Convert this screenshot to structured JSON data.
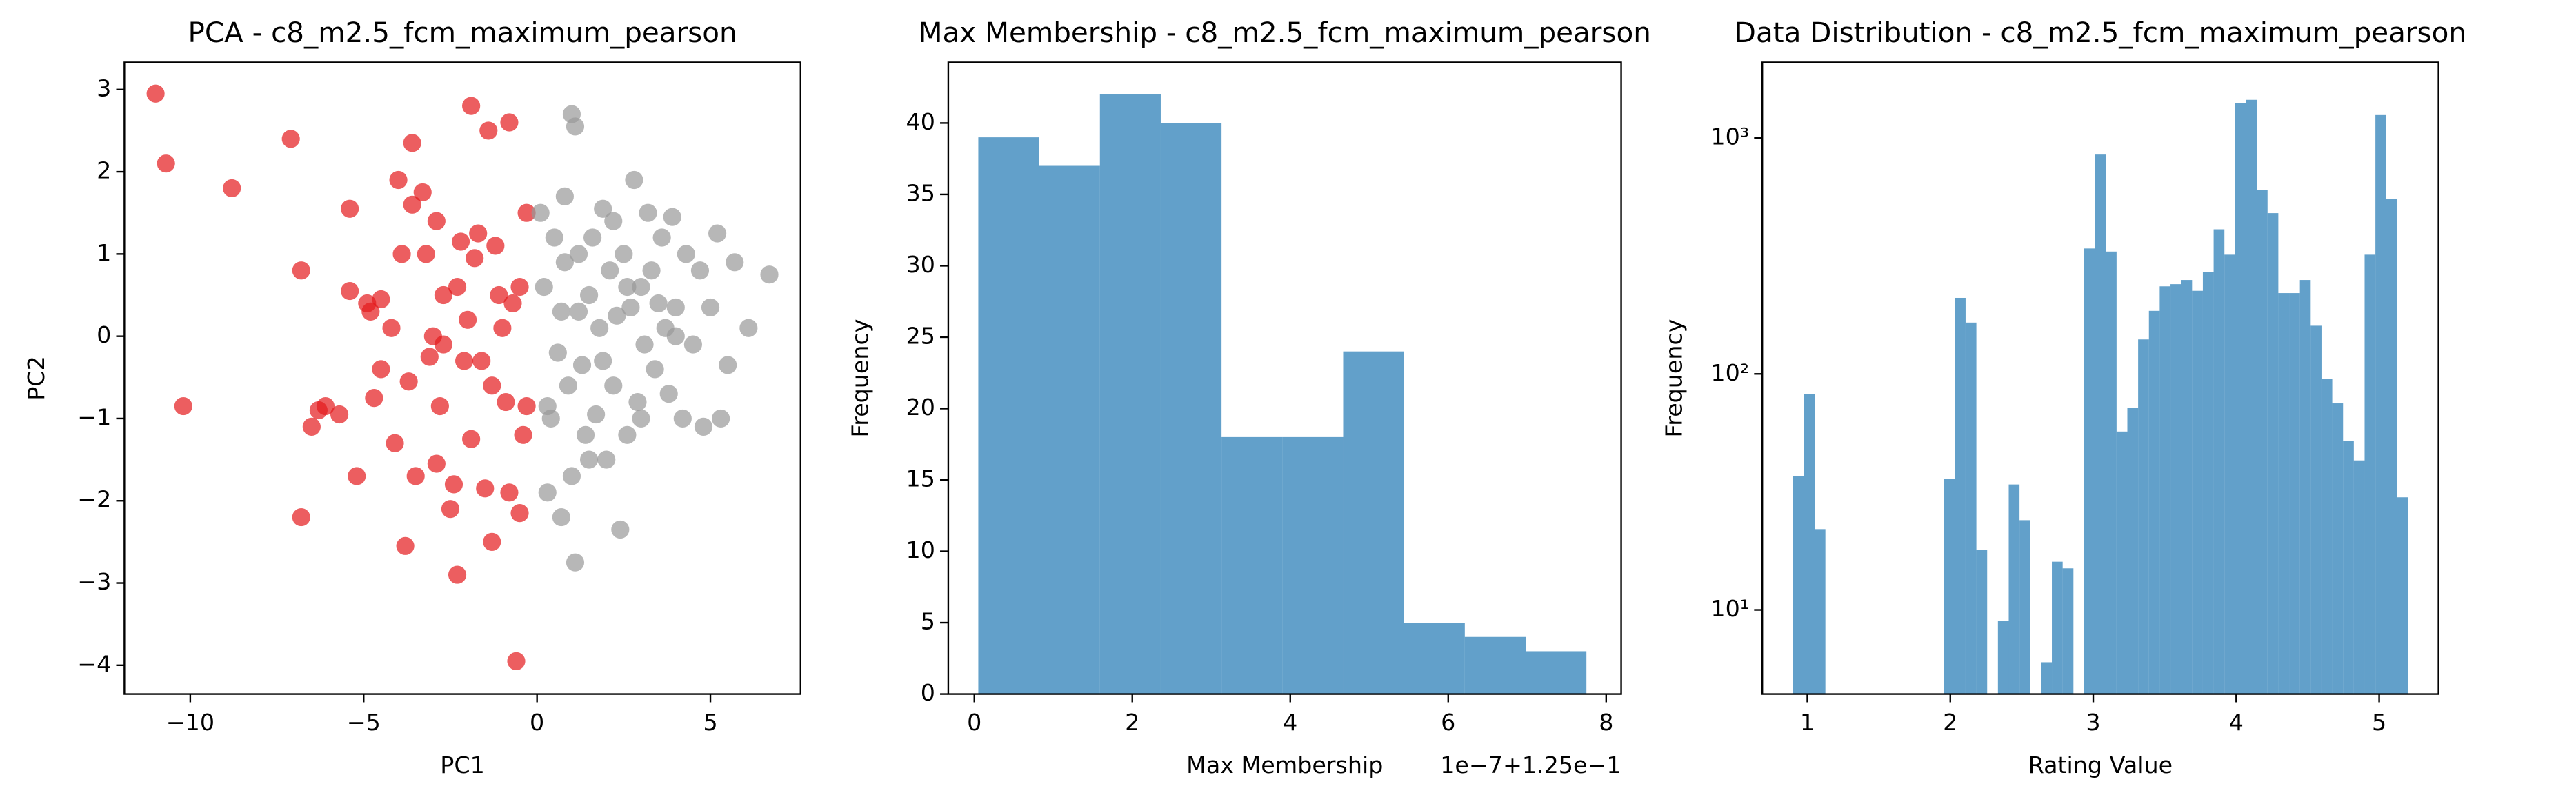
{
  "chart_data": [
    {
      "type": "scatter",
      "title": "PCA - c8_m2.5_fcm_maximum_pearson",
      "xlabel": "PC1",
      "ylabel": "PC2",
      "xlim": [
        -11.9,
        7.6
      ],
      "ylim": [
        -4.35,
        3.33
      ],
      "xticks": [
        {
          "value": -10,
          "label": "−10"
        },
        {
          "value": -5,
          "label": "−5"
        },
        0,
        5
      ],
      "yticks": [
        {
          "value": -4,
          "label": "−4"
        },
        {
          "value": -3,
          "label": "−3"
        },
        {
          "value": -2,
          "label": "−2"
        },
        {
          "value": -1,
          "label": "−1"
        },
        0,
        1,
        2,
        3
      ],
      "series": [
        {
          "color": "#e41a1c",
          "x": [
            -11,
            -10.7,
            -10.2,
            -8.8,
            -7.1,
            -6.8,
            -6.8,
            -6.5,
            -6.3,
            -6.1,
            -5.7,
            -5.4,
            -5.4,
            -5.2,
            -4.9,
            -4.8,
            -4.7,
            -4.5,
            -4.5,
            -4.2,
            -4.1,
            -4,
            -3.9,
            -3.8,
            -3.7,
            -3.6,
            -3.6,
            -3.5,
            -3.3,
            -3.2,
            -3.1,
            -2.9,
            -2.9,
            -2.8,
            -2.7,
            -2.5,
            -2.4,
            -2.3,
            -2.3,
            -2.2,
            -2,
            -1.9,
            -1.9,
            -1.8,
            -1.7,
            -1.6,
            -1.5,
            -1.4,
            -1.3,
            -1.3,
            -1.1,
            -1,
            -0.9,
            -0.8,
            -0.8,
            -0.7,
            -0.6,
            -0.5,
            -0.4,
            -0.3,
            -0.3,
            -0.5,
            -2.7,
            -3,
            -1.2,
            -2.1
          ],
          "values": [
            2.95,
            2.1,
            -0.85,
            1.8,
            2.4,
            0.8,
            -2.2,
            -1.1,
            -0.9,
            -0.85,
            -0.95,
            1.55,
            0.55,
            -1.7,
            0.4,
            0.3,
            -0.75,
            0.45,
            -0.4,
            0.1,
            -1.3,
            1.9,
            1,
            -2.55,
            -0.55,
            2.35,
            1.6,
            -1.7,
            1.75,
            1,
            -0.25,
            1.4,
            -1.55,
            -0.85,
            0.5,
            -2.1,
            -1.8,
            -2.9,
            0.6,
            1.15,
            0.2,
            2.8,
            -1.25,
            0.95,
            1.25,
            -0.3,
            -1.85,
            2.5,
            -0.6,
            -2.5,
            0.5,
            0.1,
            -0.8,
            2.6,
            -1.9,
            0.4,
            -3.95,
            0.6,
            -1.2,
            1.5,
            -0.85,
            -2.15,
            -0.1,
            0,
            1.1,
            -0.3
          ]
        },
        {
          "color": "#999999",
          "x": [
            0.1,
            0.2,
            0.3,
            0.3,
            0.5,
            0.6,
            0.7,
            0.7,
            0.8,
            0.9,
            1,
            1,
            1.1,
            1.1,
            1.2,
            1.2,
            1.3,
            1.4,
            1.5,
            1.6,
            1.7,
            1.8,
            1.9,
            2,
            2.1,
            2.2,
            2.3,
            2.4,
            2.5,
            2.6,
            2.7,
            2.8,
            2.9,
            3,
            3.1,
            3.2,
            3.3,
            3.4,
            3.5,
            3.6,
            3.8,
            3.9,
            4,
            4.2,
            4.3,
            4.5,
            4.7,
            4.8,
            5,
            5.2,
            5.5,
            5.7,
            6.1,
            6.7,
            5.3,
            0.4,
            1.5,
            2.2,
            3,
            0.8,
            1.9,
            4,
            2.6,
            3.7
          ],
          "values": [
            1.5,
            0.6,
            -0.85,
            -1.9,
            1.2,
            -0.2,
            0.3,
            -2.2,
            1.7,
            -0.6,
            -1.7,
            2.7,
            2.55,
            -2.75,
            1,
            0.3,
            -0.35,
            -1.2,
            0.5,
            1.2,
            -0.95,
            0.1,
            1.55,
            -1.5,
            0.8,
            -0.6,
            0.25,
            -2.35,
            1,
            -1.2,
            0.35,
            1.9,
            -0.8,
            0.6,
            -0.1,
            1.5,
            0.8,
            -0.4,
            0.4,
            1.2,
            -0.7,
            1.45,
            0.35,
            -1,
            1,
            -0.1,
            0.8,
            -1.1,
            0.35,
            1.25,
            -0.35,
            0.9,
            0.1,
            0.75,
            -1,
            -1,
            -1.5,
            1.4,
            -1,
            0.9,
            -0.3,
            0,
            0.6,
            0.1
          ]
        }
      ]
    },
    {
      "type": "histogram",
      "title": "Max Membership - c8_m2.5_fcm_maximum_pearson",
      "xlabel": "Max Membership",
      "ylabel": "Frequency",
      "offset_text": "1e−7+1.25e−1",
      "color": "#1f77b4",
      "xlim": [
        -0.33,
        8.19
      ],
      "ylim": [
        0,
        44.25
      ],
      "xticks": [
        0,
        2,
        4,
        6,
        8
      ],
      "yticks": [
        0,
        5,
        10,
        15,
        20,
        25,
        30,
        35,
        40
      ],
      "bins": [
        0.05,
        0.82,
        1.59,
        2.36,
        3.13,
        3.9,
        4.67,
        5.44,
        6.21,
        6.98,
        7.75
      ],
      "counts": [
        39,
        37,
        42,
        40,
        18,
        18,
        24,
        5,
        4,
        3
      ]
    },
    {
      "type": "histogram",
      "title": "Data Distribution - c8_m2.5_fcm_maximum_pearson",
      "xlabel": "Rating Value",
      "ylabel": "Frequency",
      "color": "#1f77b4",
      "yscale": "log",
      "xlim": [
        0.685,
        5.415
      ],
      "ylim": [
        4.4,
        2090
      ],
      "xticks": [
        1,
        2,
        3,
        4,
        5
      ],
      "yticks": [
        {
          "value": 10,
          "label": "10¹"
        },
        {
          "value": 100,
          "label": "10²"
        },
        {
          "value": 1000,
          "label": "10³"
        }
      ],
      "bins": [
        0.9,
        0.9754,
        1.0509,
        1.1263,
        1.2018,
        1.2772,
        1.3526,
        1.4281,
        1.5035,
        1.5789,
        1.6544,
        1.7298,
        1.8053,
        1.8807,
        1.9561,
        2.0316,
        2.107,
        2.1825,
        2.2579,
        2.3333,
        2.4088,
        2.4842,
        2.5596,
        2.6351,
        2.7105,
        2.786,
        2.8614,
        2.9368,
        3.0123,
        3.0877,
        3.1632,
        3.2386,
        3.314,
        3.3895,
        3.4649,
        3.5404,
        3.6158,
        3.6912,
        3.7667,
        3.8421,
        3.9175,
        3.993,
        4.0684,
        4.1439,
        4.2193,
        4.2947,
        4.3702,
        4.4456,
        4.5211,
        4.5965,
        4.6719,
        4.7474,
        4.8228,
        4.8982,
        4.9737,
        5.0491,
        5.1246,
        5.2
      ],
      "counts": [
        37,
        82,
        22,
        0,
        0,
        0,
        0,
        0,
        0,
        0,
        0,
        0,
        0,
        0,
        36,
        210,
        165,
        18,
        0,
        9,
        34,
        24,
        0,
        6,
        16,
        15,
        0,
        340,
        850,
        330,
        57,
        72,
        140,
        185,
        235,
        240,
        250,
        225,
        270,
        410,
        320,
        1400,
        1450,
        600,
        480,
        220,
        220,
        250,
        160,
        95,
        75,
        52,
        43,
        320,
        1250,
        550,
        30
      ]
    }
  ]
}
